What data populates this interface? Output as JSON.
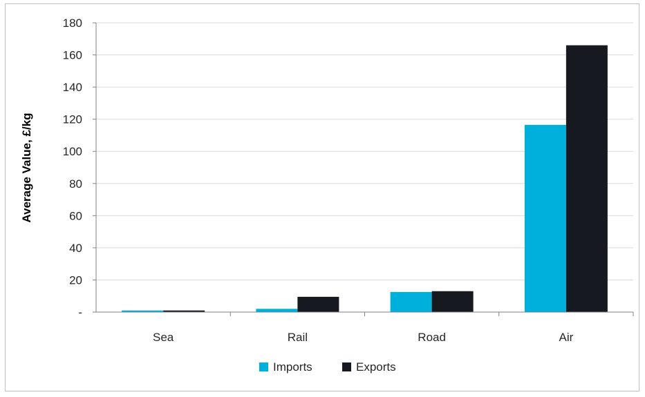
{
  "chart_data": {
    "type": "bar",
    "title": "",
    "xlabel": "",
    "ylabel": "Average Value, £/kg",
    "ylim": [
      0,
      180
    ],
    "yticks": [
      {
        "value": 0,
        "label": "-"
      },
      {
        "value": 20,
        "label": "20"
      },
      {
        "value": 40,
        "label": "40"
      },
      {
        "value": 60,
        "label": "60"
      },
      {
        "value": 80,
        "label": "80"
      },
      {
        "value": 100,
        "label": "100"
      },
      {
        "value": 120,
        "label": "120"
      },
      {
        "value": 140,
        "label": "140"
      },
      {
        "value": 160,
        "label": "160"
      },
      {
        "value": 180,
        "label": "180"
      }
    ],
    "categories": [
      "Sea",
      "Rail",
      "Road",
      "Air"
    ],
    "series": [
      {
        "name": "Imports",
        "color": "#00b0dc",
        "values": [
          1,
          2,
          12.5,
          116.5
        ]
      },
      {
        "name": "Exports",
        "color": "#16191f",
        "values": [
          1,
          9.5,
          13,
          166
        ]
      }
    ],
    "grid": true,
    "legend_position": "bottom",
    "gridline_color": "#d9d9d9",
    "axis_color": "#808080"
  }
}
